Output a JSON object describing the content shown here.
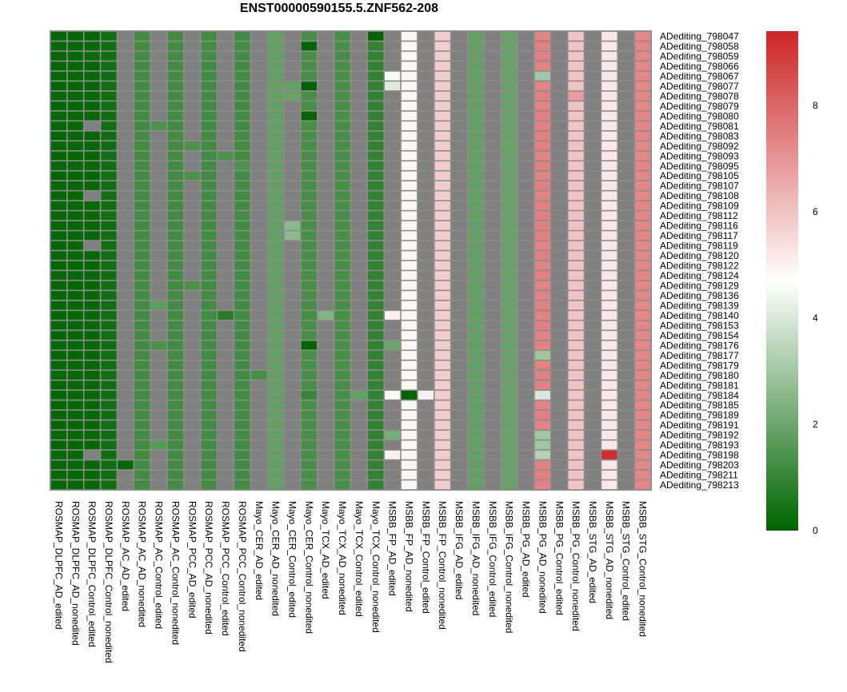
{
  "chart_data": {
    "type": "heatmap",
    "title": "ENST00000590155.5.ZNF562-208",
    "columns": [
      "ROSMAP_DLPFC_AD_edited",
      "ROSMAP_DLPFC_AD_nonedited",
      "ROSMAP_DLPFC_Control_edited",
      "ROSMAP_DLPFC_Control_nonedited",
      "ROSMAP_AC_AD_edited",
      "ROSMAP_AC_AD_nonedited",
      "ROSMAP_AC_Control_edited",
      "ROSMAP_AC_Control_nonedited",
      "ROSMAP_PCC_AD_edited",
      "ROSMAP_PCC_AD_nonedited",
      "ROSMAP_PCC_Control_edited",
      "ROSMAP_PCC_Control_nonedited",
      "Mayo_CER_AD_edited",
      "Mayo_CER_AD_nonedited",
      "Mayo_CER_Control_edited",
      "Mayo_CER_Control_nonedited",
      "Mayo_TCX_AD_edited",
      "Mayo_TCX_AD_nonedited",
      "Mayo_TCX_Control_edited",
      "Mayo_TCX_Control_nonedited",
      "MSBB_FP_AD_edited",
      "MSBB_FP_AD_nonedited",
      "MSBB_FP_Control_edited",
      "MSBB_FP_Control_nonedited",
      "MSBB_IFG_AD_edited",
      "MSBB_IFG_AD_nonedited",
      "MSBB_IFG_Control_edited",
      "MSBB_IFG_Control_nonedited",
      "MSBB_PG_AD_edited",
      "MSBB_PG_AD_nonedited",
      "MSBB_PG_Control_edited",
      "MSBB_PG_Control_nonedited",
      "MSBB_STG_AD_edited",
      "MSBB_STG_AD_nonedited",
      "MSBB_STG_Control_edited",
      "MSBB_STG_Control_nonedited"
    ],
    "rows": [
      "ADediting_798047",
      "ADediting_798058",
      "ADediting_798059",
      "ADediting_798066",
      "ADediting_798067",
      "ADediting_798077",
      "ADediting_798078",
      "ADediting_798079",
      "ADediting_798080",
      "ADediting_798081",
      "ADediting_798083",
      "ADediting_798092",
      "ADediting_798093",
      "ADediting_798095",
      "ADediting_798105",
      "ADediting_798107",
      "ADediting_798108",
      "ADediting_798109",
      "ADediting_798112",
      "ADediting_798116",
      "ADediting_798117",
      "ADediting_798119",
      "ADediting_798120",
      "ADediting_798122",
      "ADediting_798124",
      "ADediting_798129",
      "ADediting_798136",
      "ADediting_798139",
      "ADediting_798140",
      "ADediting_798153",
      "ADediting_798154",
      "ADediting_798176",
      "ADediting_798177",
      "ADediting_798179",
      "ADediting_798180",
      "ADediting_798181",
      "ADediting_798184",
      "ADediting_798185",
      "ADediting_798189",
      "ADediting_798191",
      "ADediting_798192",
      "ADediting_798193",
      "ADediting_798198",
      "ADediting_798203",
      "ADediting_798211",
      "ADediting_798213"
    ],
    "column_defaults": [
      0.1,
      0.1,
      0.1,
      0.3,
      null,
      1.2,
      null,
      1.2,
      null,
      1.2,
      null,
      1.2,
      null,
      1.8,
      null,
      1.3,
      null,
      1.3,
      null,
      0.9,
      null,
      4.9,
      null,
      5.8,
      null,
      1.8,
      null,
      1.9,
      null,
      7.4,
      null,
      6.0,
      null,
      5.2,
      null,
      7.3
    ],
    "overrides": [
      {
        "row": 0,
        "col": 19,
        "value": 0.0
      },
      {
        "row": 1,
        "col": 15,
        "value": 0.0
      },
      {
        "row": 2,
        "col": 2,
        "value": 0.2
      },
      {
        "row": 4,
        "col": 20,
        "value": 4.6
      },
      {
        "row": 4,
        "col": 29,
        "value": 3.0
      },
      {
        "row": 5,
        "col": 20,
        "value": 4.1
      },
      {
        "row": 5,
        "col": 15,
        "value": 0.0
      },
      {
        "row": 5,
        "col": 14,
        "value": 1.8
      },
      {
        "row": 6,
        "col": 14,
        "value": 1.9
      },
      {
        "row": 6,
        "col": 31,
        "value": 6.8
      },
      {
        "row": 8,
        "col": 15,
        "value": 0.0
      },
      {
        "row": 9,
        "col": 2,
        "value": null
      },
      {
        "row": 9,
        "col": 6,
        "value": 1.4
      },
      {
        "row": 11,
        "col": 8,
        "value": 1.4
      },
      {
        "row": 12,
        "col": 10,
        "value": 1.4
      },
      {
        "row": 13,
        "col": 11,
        "value": 1.4
      },
      {
        "row": 14,
        "col": 8,
        "value": 1.4
      },
      {
        "row": 16,
        "col": 2,
        "value": null
      },
      {
        "row": 19,
        "col": 14,
        "value": 2.6
      },
      {
        "row": 20,
        "col": 14,
        "value": 2.6
      },
      {
        "row": 21,
        "col": 2,
        "value": null
      },
      {
        "row": 25,
        "col": 8,
        "value": 1.4
      },
      {
        "row": 27,
        "col": 6,
        "value": 1.7
      },
      {
        "row": 28,
        "col": 20,
        "value": 5.0
      },
      {
        "row": 28,
        "col": 16,
        "value": 2.4
      },
      {
        "row": 28,
        "col": 10,
        "value": 0.7
      },
      {
        "row": 31,
        "col": 6,
        "value": 1.4
      },
      {
        "row": 31,
        "col": 15,
        "value": 0.0
      },
      {
        "row": 31,
        "col": 20,
        "value": 2.0
      },
      {
        "row": 32,
        "col": 29,
        "value": 3.0
      },
      {
        "row": 34,
        "col": 12,
        "value": 1.3
      },
      {
        "row": 36,
        "col": 20,
        "value": 4.9
      },
      {
        "row": 36,
        "col": 22,
        "value": 5.0
      },
      {
        "row": 36,
        "col": 29,
        "value": 4.0
      },
      {
        "row": 36,
        "col": 15,
        "value": 1.0
      },
      {
        "row": 36,
        "col": 18,
        "value": 1.8
      },
      {
        "row": 36,
        "col": 21,
        "value": 0.0
      },
      {
        "row": 40,
        "col": 20,
        "value": 2.2
      },
      {
        "row": 40,
        "col": 29,
        "value": 3.0
      },
      {
        "row": 41,
        "col": 6,
        "value": 1.6
      },
      {
        "row": 41,
        "col": 29,
        "value": 3.0
      },
      {
        "row": 42,
        "col": 2,
        "value": null
      },
      {
        "row": 42,
        "col": 20,
        "value": 5.0
      },
      {
        "row": 42,
        "col": 29,
        "value": 3.3
      },
      {
        "row": 42,
        "col": 33,
        "value": 9.2
      },
      {
        "row": 43,
        "col": 4,
        "value": 0.1
      }
    ],
    "na_color": "#808080",
    "colorscale": {
      "low": "#006400",
      "mid": "#ffffff",
      "high": "#cd2626",
      "midpoint": 4.7,
      "min": 0,
      "max": 9.4
    },
    "legend_ticks": [
      0,
      2,
      4,
      6,
      8
    ],
    "legend_placement": "right"
  }
}
